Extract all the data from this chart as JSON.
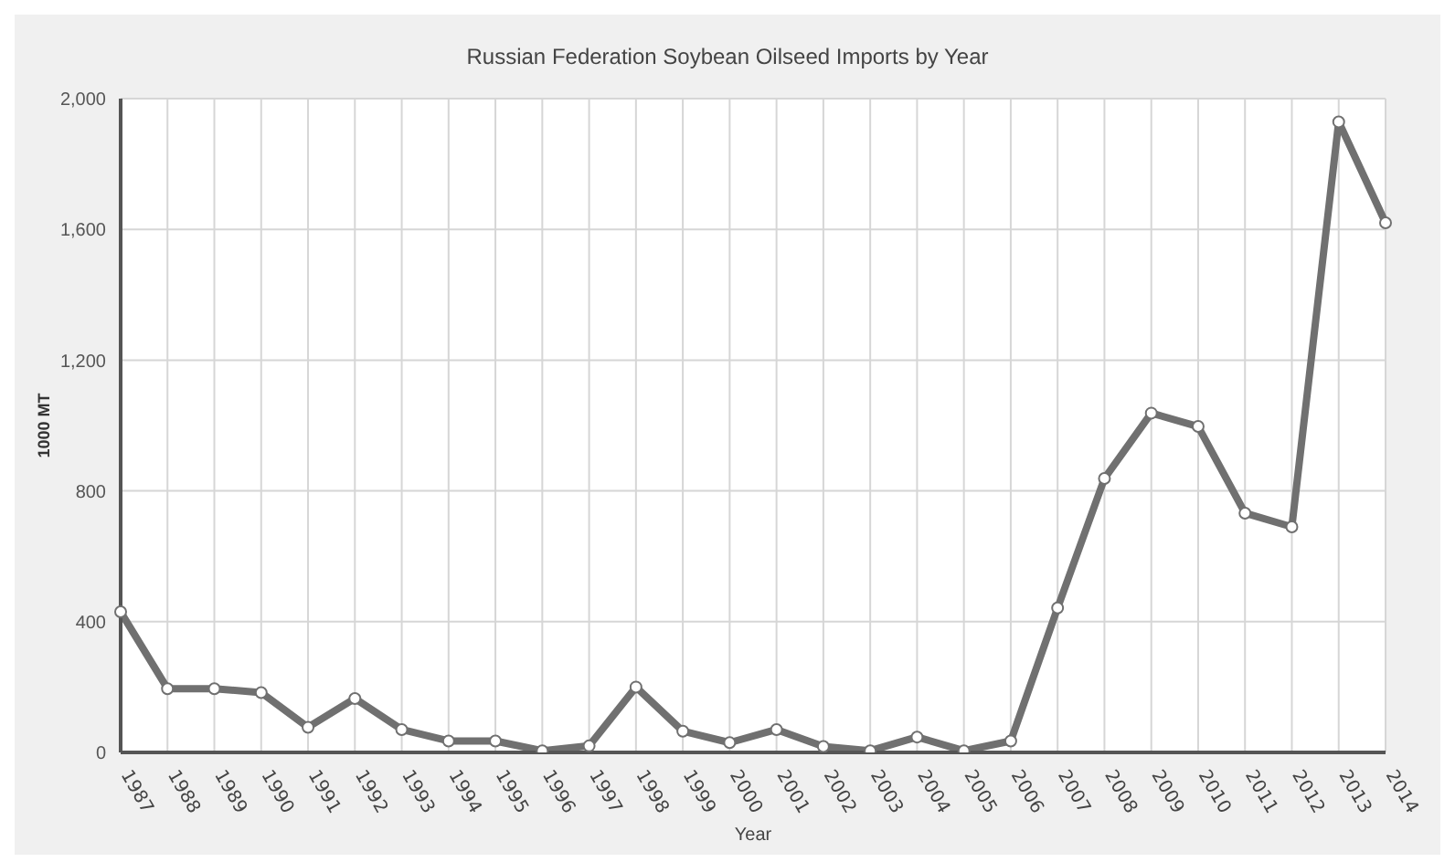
{
  "chart_data": {
    "type": "line",
    "title": "Russian Federation Soybean Oilseed Imports by Year",
    "xlabel": "Year",
    "ylabel": "1000 MT",
    "categories": [
      "1987",
      "1988",
      "1989",
      "1990",
      "1991",
      "1992",
      "1993",
      "1994",
      "1995",
      "1996",
      "1997",
      "1998",
      "1999",
      "2000",
      "2001",
      "2002",
      "2003",
      "2004",
      "2005",
      "2006",
      "2007",
      "2008",
      "2009",
      "2010",
      "2011",
      "2012",
      "2013",
      "2014"
    ],
    "series": [
      {
        "color": "#707070",
        "values": [
          430,
          195,
          195,
          183,
          77,
          165,
          70,
          35,
          35,
          5,
          20,
          200,
          65,
          30,
          70,
          18,
          5,
          47,
          5,
          35,
          442,
          838,
          1038,
          997,
          732,
          690,
          1929,
          1620
        ]
      }
    ],
    "ylim": [
      0,
      2000
    ],
    "yticks": [
      0,
      {
        "value": 400,
        "label": "400"
      },
      {
        "value": 800,
        "label": "800"
      },
      {
        "value": 1200,
        "label": "1,200"
      },
      {
        "value": 1600,
        "label": "1,600"
      },
      {
        "value": 2000,
        "label": "2,000"
      }
    ],
    "grid": true,
    "marker": "circle",
    "line_style": "solid",
    "legend": false
  }
}
